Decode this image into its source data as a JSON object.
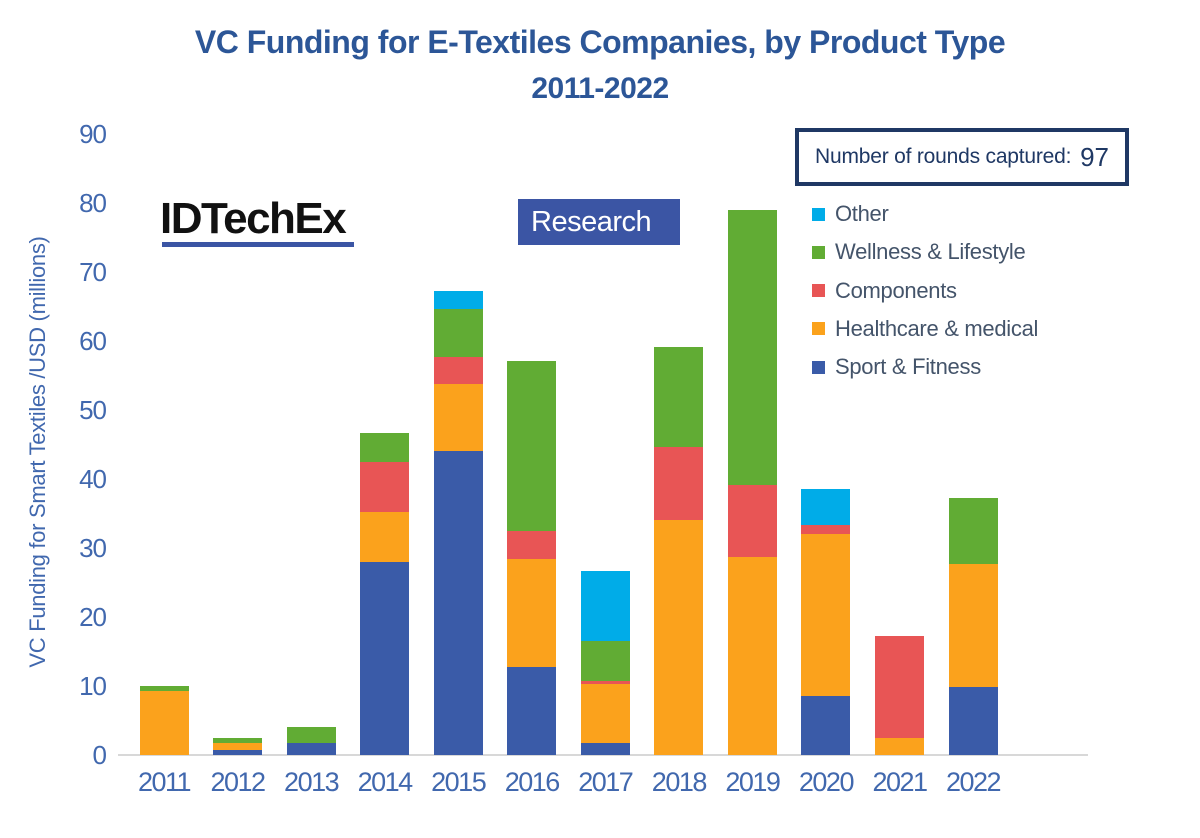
{
  "title": "VC Funding for E-Textiles Companies, by Product Type",
  "subtitle": "2011-2022",
  "rounds_box": {
    "label": "Number of rounds captured:",
    "value": "97"
  },
  "logo": {
    "name": "IDTechEx",
    "research_label": "Research"
  },
  "colors": {
    "title_text": "#2C5697",
    "axis_text": "#4168AE",
    "legend_text": "#44546A",
    "rounds_box_border": "#1F3864",
    "rounds_box_text": "#1F3864",
    "logo_blue": "#3B55A4",
    "axis_line": "#D8D8D8",
    "background": "#FFFFFF"
  },
  "chart_data": {
    "type": "bar",
    "stacked": true,
    "title": "VC Funding for E-Textiles Companies, by Product Type 2011-2022",
    "xlabel": "",
    "ylabel": "VC Funding for Smart Textiles  /USD (millions)",
    "ylim": [
      0,
      90
    ],
    "yticks": [
      0,
      10,
      20,
      30,
      40,
      50,
      60,
      70,
      80,
      90
    ],
    "grid": false,
    "legend_position": "right",
    "units": "USD millions",
    "categories": [
      "2011",
      "2012",
      "2013",
      "2014",
      "2015",
      "2016",
      "2017",
      "2018",
      "2019",
      "2020",
      "2021",
      "2022"
    ],
    "series": [
      {
        "name": "Sport & Fitness",
        "color": "#3A5BA8",
        "values": [
          0,
          0.7,
          1.7,
          28.0,
          44.0,
          12.8,
          1.8,
          0,
          0,
          8.5,
          0,
          9.8
        ]
      },
      {
        "name": "Healthcare & medical",
        "color": "#FBA21C",
        "values": [
          9.3,
          1.0,
          0,
          7.2,
          9.7,
          15.6,
          8.5,
          34.0,
          28.7,
          23.5,
          2.5,
          17.9
        ]
      },
      {
        "name": "Components",
        "color": "#E85555",
        "values": [
          0,
          0,
          0,
          7.3,
          4.0,
          4.0,
          0.4,
          10.7,
          10.4,
          1.3,
          14.7,
          0
        ]
      },
      {
        "name": "Wellness & Lifestyle",
        "color": "#61AC34",
        "values": [
          0.7,
          0.7,
          2.4,
          4.2,
          7.0,
          24.7,
          5.8,
          14.5,
          39.9,
          0,
          0,
          9.5
        ]
      },
      {
        "name": "Other",
        "color": "#00ACE8",
        "values": [
          0,
          0,
          0,
          0,
          2.6,
          0,
          10.2,
          0,
          0,
          5.3,
          0,
          0
        ]
      }
    ],
    "legend_order_top_to_bottom": [
      "Other",
      "Wellness & Lifestyle",
      "Components",
      "Healthcare & medical",
      "Sport & Fitness"
    ]
  }
}
